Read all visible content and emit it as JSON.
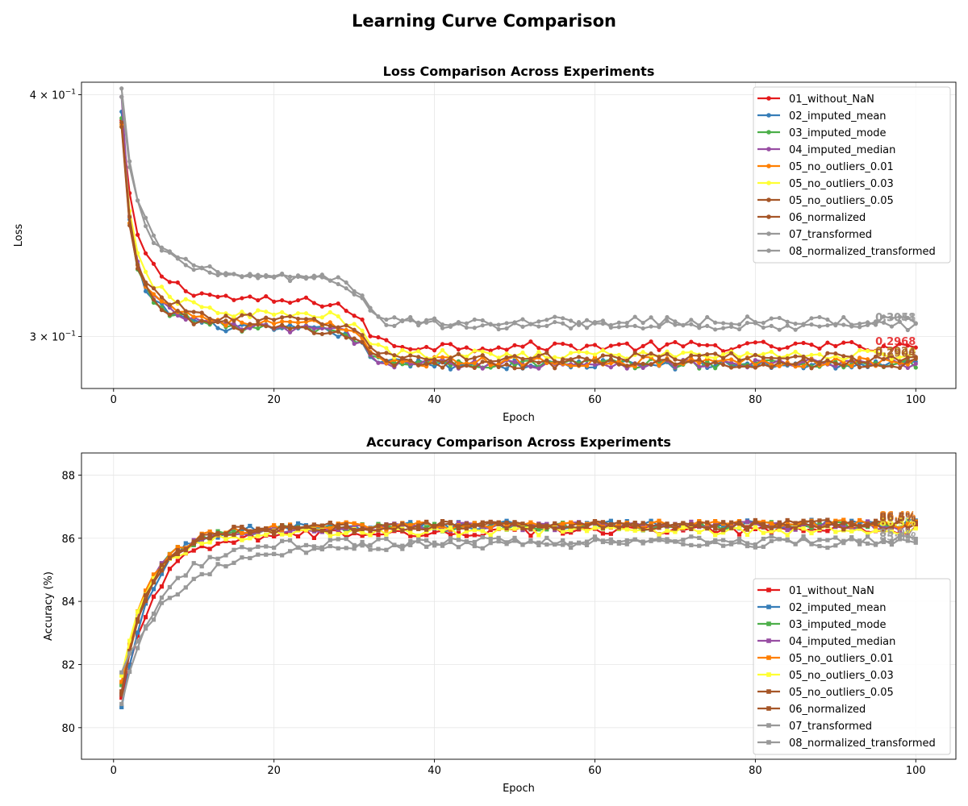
{
  "figure": {
    "suptitle": "Learning Curve Comparison"
  },
  "chart_data": [
    {
      "id": "loss",
      "type": "line",
      "title": "Loss Comparison Across Experiments",
      "xlabel": "Epoch",
      "ylabel": "Loss",
      "yscale": "log",
      "xlim": [
        -4,
        105
      ],
      "ylim": [
        0.282,
        0.406
      ],
      "xticks": [
        0,
        20,
        40,
        60,
        80,
        100
      ],
      "yticks": [
        {
          "value": 0.3,
          "mantissa": "3",
          "base": "10",
          "exp": "−1"
        },
        {
          "value": 0.4,
          "mantissa": "4",
          "base": "10",
          "exp": "−1"
        }
      ],
      "grid": true,
      "legend_position": "upper right",
      "marker": "circle",
      "x": {
        "start": 1,
        "end": 100,
        "step": 1
      },
      "series": [
        {
          "name": "01_without_NaN",
          "color": "#e41a1c",
          "shape": {
            "start": 0.388,
            "plateau": 0.2965,
            "decay_tau": 3.0,
            "early": 0.03,
            "mid": 0.016,
            "drop_epoch": 31
          },
          "end_label": "0.2968"
        },
        {
          "name": "02_imputed_mean",
          "color": "#377eb8",
          "shape": {
            "start": 0.392,
            "plateau": 0.2902,
            "decay_tau": 2.6,
            "early": 0.025,
            "mid": 0.012,
            "drop_epoch": 31
          },
          "end_label": ""
        },
        {
          "name": "03_imputed_mode",
          "color": "#4daf4a",
          "shape": {
            "start": 0.389,
            "plateau": 0.2905,
            "decay_tau": 2.6,
            "early": 0.025,
            "mid": 0.012,
            "drop_epoch": 31
          },
          "end_label": ""
        },
        {
          "name": "04_imputed_median",
          "color": "#984ea3",
          "shape": {
            "start": 0.399,
            "plateau": 0.2905,
            "decay_tau": 2.6,
            "early": 0.026,
            "mid": 0.012,
            "drop_epoch": 31
          },
          "end_label": ""
        },
        {
          "name": "05_no_outliers_0.01",
          "color": "#ff7f00",
          "shape": {
            "start": 0.386,
            "plateau": 0.2912,
            "decay_tau": 2.7,
            "early": 0.026,
            "mid": 0.013,
            "drop_epoch": 31
          },
          "end_label": ""
        },
        {
          "name": "05_no_outliers_0.03",
          "color": "#ffff33",
          "shape": {
            "start": 0.385,
            "plateau": 0.2935,
            "decay_tau": 2.7,
            "early": 0.027,
            "mid": 0.014,
            "drop_epoch": 31
          },
          "end_label": "0.2940"
        },
        {
          "name": "05_no_outliers_0.05",
          "color": "#a65628",
          "shape": {
            "start": 0.387,
            "plateau": 0.2925,
            "decay_tau": 2.6,
            "early": 0.026,
            "mid": 0.013,
            "drop_epoch": 31
          },
          "end_label": "0.2924"
        },
        {
          "name": "06_normalized",
          "color": "#a65628",
          "shape": {
            "start": 0.385,
            "plateau": 0.2905,
            "decay_tau": 2.6,
            "early": 0.026,
            "mid": 0.012,
            "drop_epoch": 31
          },
          "end_label": "0.2904"
        },
        {
          "name": "07_transformed",
          "color": "#999999",
          "shape": {
            "start": 0.399,
            "plateau": 0.3055,
            "decay_tau": 3.4,
            "early": 0.034,
            "mid": 0.016,
            "drop_epoch": 31
          },
          "end_label": "0.3058"
        },
        {
          "name": "08_normalized_transformed",
          "color": "#999999",
          "shape": {
            "start": 0.403,
            "plateau": 0.304,
            "decay_tau": 3.6,
            "early": 0.036,
            "mid": 0.017,
            "drop_epoch": 31
          },
          "end_label": "0.3041"
        }
      ]
    },
    {
      "id": "accuracy",
      "type": "line",
      "title": "Accuracy Comparison Across Experiments",
      "xlabel": "Epoch",
      "ylabel": "Accuracy (%)",
      "yscale": "linear",
      "xlim": [
        -4,
        105
      ],
      "ylim": [
        79.0,
        88.7
      ],
      "xticks": [
        0,
        20,
        40,
        60,
        80,
        100
      ],
      "yticks": [
        80,
        82,
        84,
        86,
        88
      ],
      "grid": true,
      "legend_position": "lower right",
      "marker": "square",
      "x": {
        "start": 1,
        "end": 100,
        "step": 1
      },
      "series": [
        {
          "name": "01_without_NaN",
          "color": "#e41a1c",
          "shape": {
            "start": 81.2,
            "plateau": 86.25,
            "rise_tau": 4.0
          },
          "end_label": ""
        },
        {
          "name": "02_imputed_mean",
          "color": "#377eb8",
          "shape": {
            "start": 80.9,
            "plateau": 86.45,
            "rise_tau": 3.5
          },
          "end_label": ""
        },
        {
          "name": "03_imputed_mode",
          "color": "#4daf4a",
          "shape": {
            "start": 81.6,
            "plateau": 86.4,
            "rise_tau": 3.3
          },
          "end_label": ""
        },
        {
          "name": "04_imputed_median",
          "color": "#984ea3",
          "shape": {
            "start": 81.3,
            "plateau": 86.4,
            "rise_tau": 3.3
          },
          "end_label": ""
        },
        {
          "name": "05_no_outliers_0.01",
          "color": "#ff7f00",
          "shape": {
            "start": 81.7,
            "plateau": 86.45,
            "rise_tau": 3.4
          },
          "end_label": "86.4%"
        },
        {
          "name": "05_no_outliers_0.03",
          "color": "#ffff33",
          "shape": {
            "start": 81.9,
            "plateau": 86.25,
            "rise_tau": 3.4
          },
          "end_label": "86.3%"
        },
        {
          "name": "05_no_outliers_0.05",
          "color": "#a65628",
          "shape": {
            "start": 81.4,
            "plateau": 86.4,
            "rise_tau": 3.4
          },
          "end_label": "86.5%"
        },
        {
          "name": "06_normalized",
          "color": "#a65628",
          "shape": {
            "start": 81.3,
            "plateau": 86.45,
            "rise_tau": 3.4
          },
          "end_label": "86.5%"
        },
        {
          "name": "07_transformed",
          "color": "#999999",
          "shape": {
            "start": 81.0,
            "plateau": 85.95,
            "rise_tau": 4.5
          },
          "end_label": "85.9%"
        },
        {
          "name": "08_normalized_transformed",
          "color": "#999999",
          "shape": {
            "start": 82.0,
            "plateau": 85.85,
            "rise_tau": 6.5
          },
          "end_label": "85.8%"
        }
      ]
    }
  ]
}
